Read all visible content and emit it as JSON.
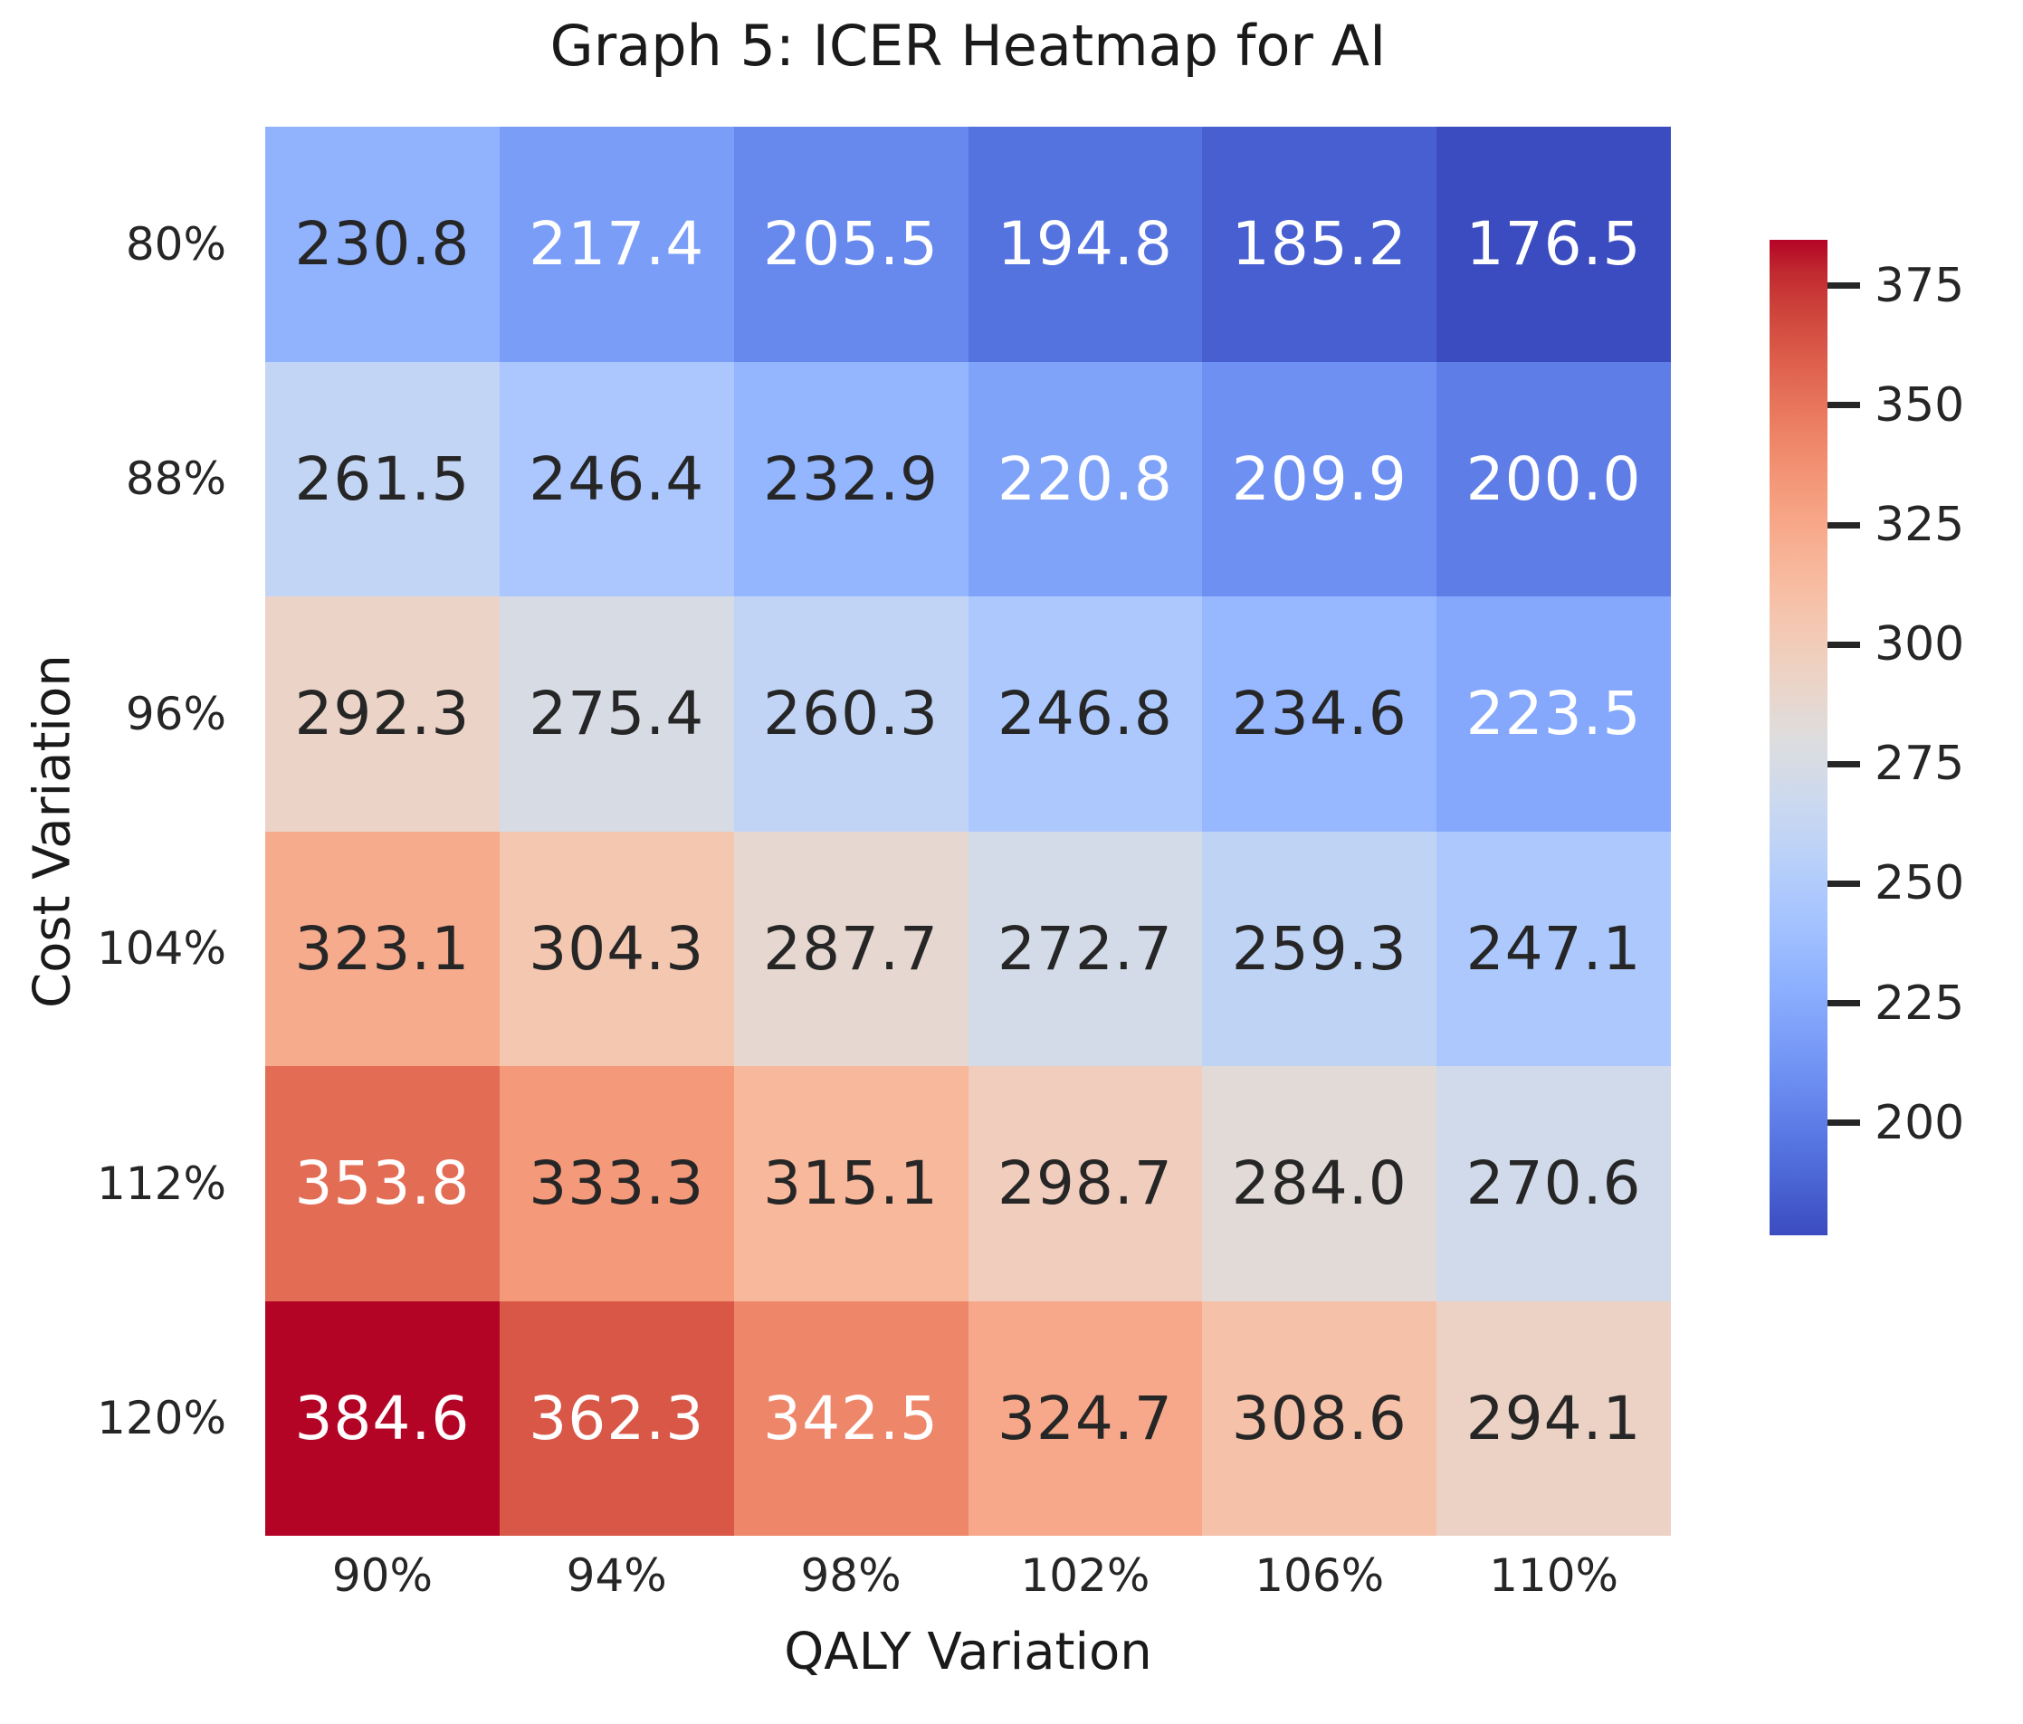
{
  "chart_data": {
    "type": "heatmap",
    "title": "Graph 5: ICER Heatmap for AI",
    "xlabel": "QALY Variation",
    "ylabel": "Cost Variation",
    "x_tick_labels": [
      "90%",
      "94%",
      "98%",
      "102%",
      "106%",
      "110%"
    ],
    "y_tick_labels": [
      "80%",
      "88%",
      "96%",
      "104%",
      "112%",
      "120%"
    ],
    "values": [
      [
        230.8,
        217.4,
        205.5,
        194.8,
        185.2,
        176.5
      ],
      [
        261.5,
        246.4,
        232.9,
        220.8,
        209.9,
        200.0
      ],
      [
        292.3,
        275.4,
        260.3,
        246.8,
        234.6,
        223.5
      ],
      [
        323.1,
        304.3,
        287.7,
        272.7,
        259.3,
        247.1
      ],
      [
        353.8,
        333.3,
        315.1,
        298.7,
        284.0,
        270.6
      ],
      [
        384.6,
        362.3,
        342.5,
        324.7,
        308.6,
        294.1
      ]
    ],
    "value_format_decimals": 1,
    "colormap": "coolwarm",
    "vmin": 176.5,
    "vmax": 384.6,
    "colorbar_tick_values": [
      375,
      350,
      325,
      300,
      275,
      250,
      225,
      200
    ],
    "legend_position": "right",
    "grid": false,
    "colors": {
      "min_blue": "#3b4cc0",
      "mid_gray": "#dddddd",
      "max_red": "#b40426",
      "annotation_dark": "#262626",
      "annotation_light": "#ffffff",
      "background": "#ffffff"
    }
  }
}
